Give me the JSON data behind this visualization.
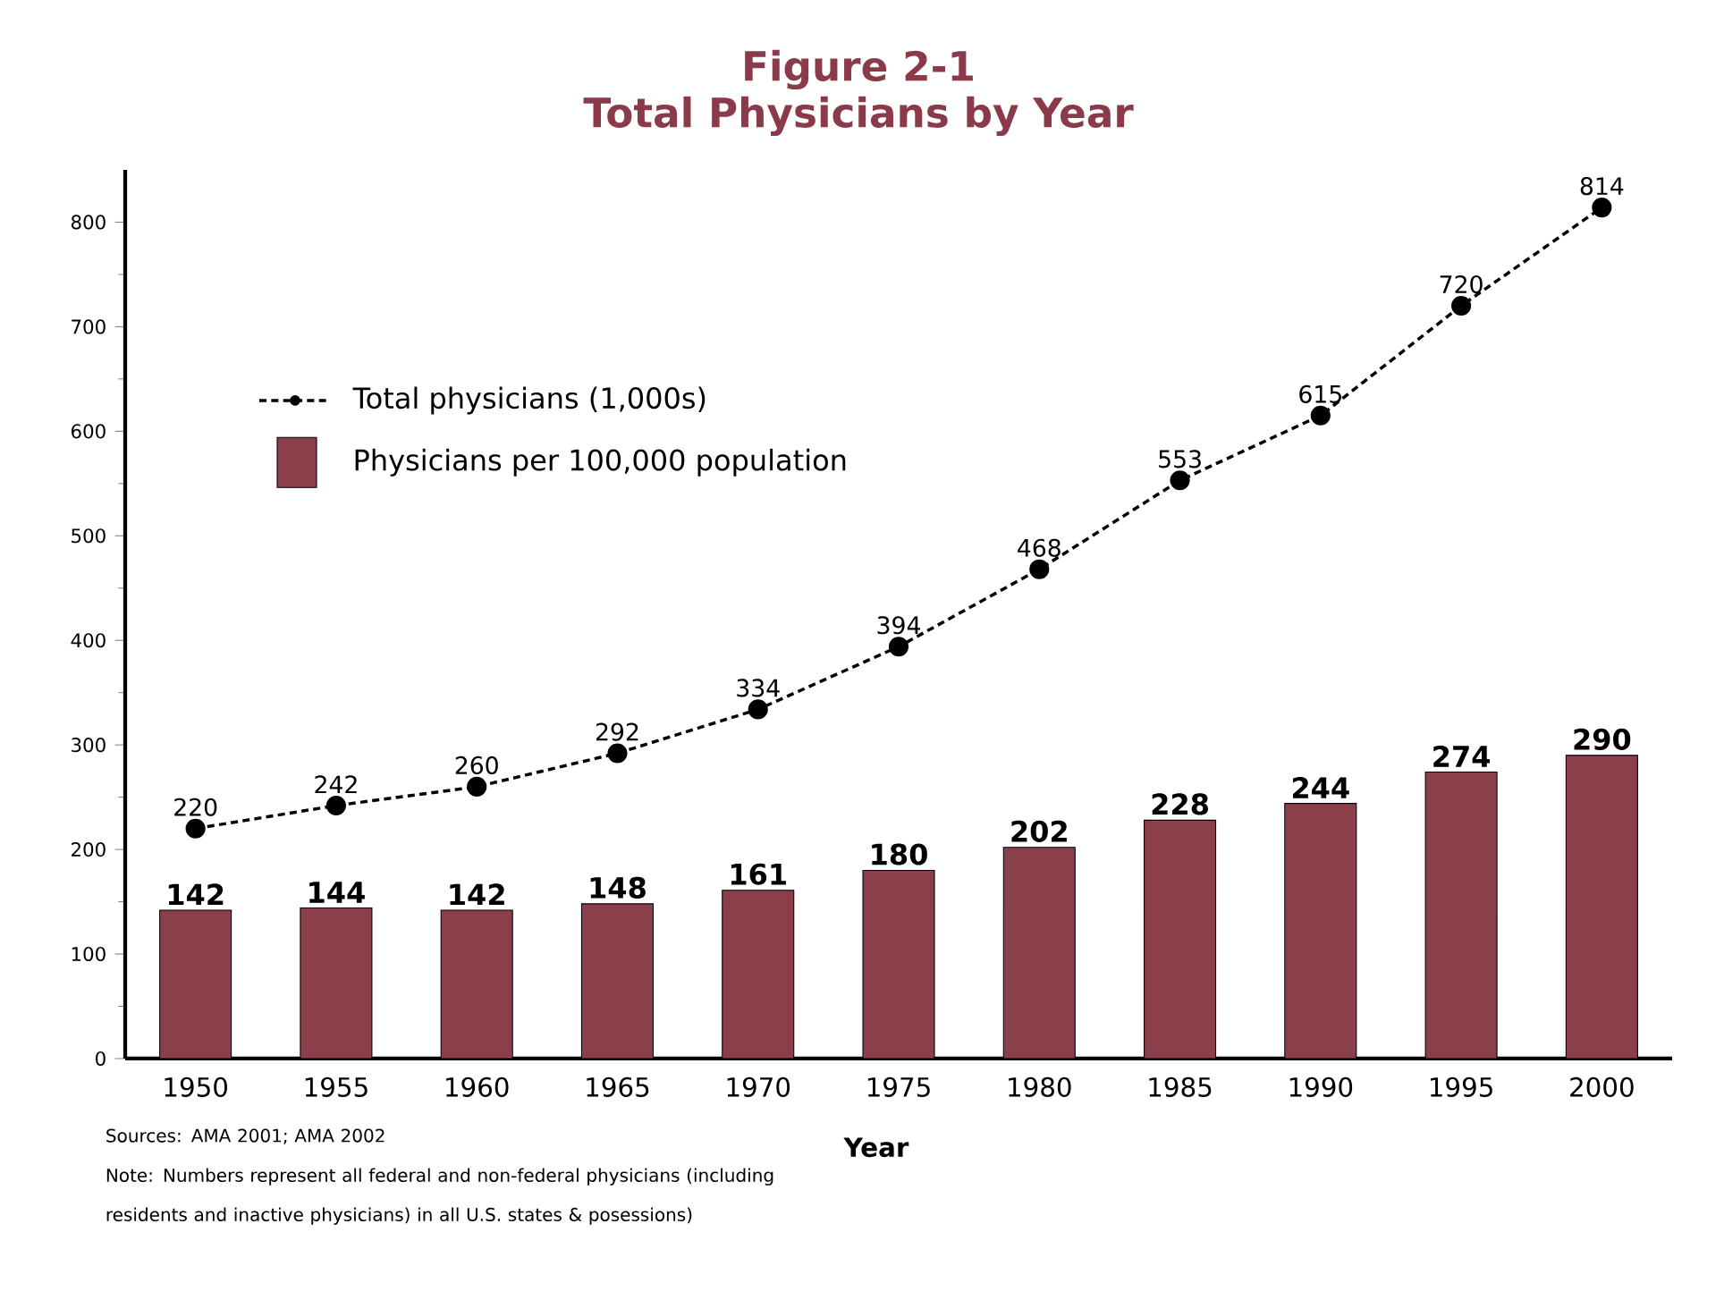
{
  "chart_data": {
    "type": "bar",
    "title": "Figure 2-1",
    "subtitle": "Total Physicians by Year",
    "xlabel": "Year",
    "categories": [
      "1950",
      "1955",
      "1960",
      "1965",
      "1970",
      "1975",
      "1980",
      "1985",
      "1990",
      "1995",
      "2000"
    ],
    "series": [
      {
        "name": "Physicians per 100,000 population",
        "color": "#8b3f4b",
        "values": [
          142,
          144,
          142,
          148,
          161,
          180,
          202,
          228,
          244,
          274,
          290
        ]
      },
      {
        "name": "Total physicians (1,000s)",
        "type": "line",
        "color": "#000000",
        "marker": "circle",
        "line_style": "dashed",
        "values": [
          220,
          242,
          260,
          292,
          334,
          394,
          468,
          553,
          615,
          720,
          814
        ]
      }
    ],
    "ylim": [
      0,
      850
    ],
    "yticks": [
      0,
      100,
      200,
      300,
      400,
      500,
      600,
      700,
      800
    ],
    "data_labels": true,
    "legend": "top left",
    "annotations": [
      "Sources: AMA 2001; AMA 2002",
      "Note: Numbers represent all federal and non-federal physicians (including residents and inactive physicians) in all U.S. states & posessions)"
    ]
  }
}
